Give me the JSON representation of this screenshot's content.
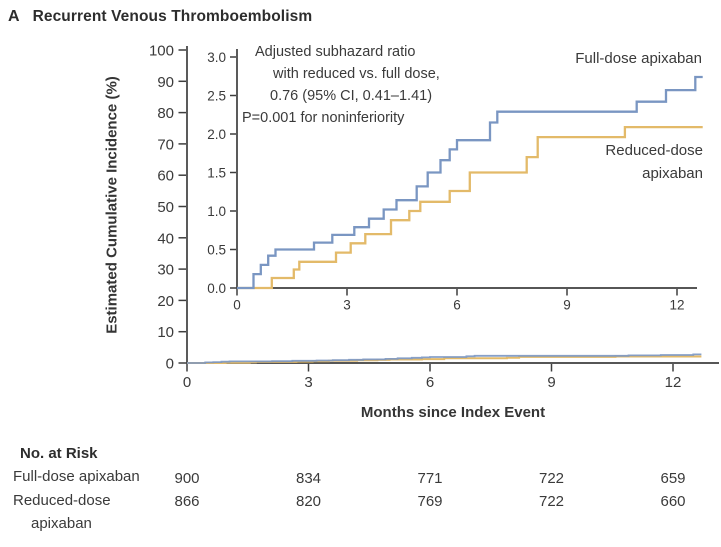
{
  "panel": {
    "label": "A",
    "title": "Recurrent Venous Thromboembolism"
  },
  "colors": {
    "full_dose": "#7a96c2",
    "reduced_dose": "#e3ba69",
    "axis": "#3e3e3e",
    "text": "#3a3a3a"
  },
  "chart_data": {
    "type": "line",
    "subtype": "step-function-cumulative-incidence",
    "title": "Recurrent Venous Thromboembolism",
    "xlabel": "Months since Index Event",
    "ylabel": "Estimated Cumulative Incidence (%)",
    "main_axis": {
      "xlim": [
        0,
        13.1
      ],
      "ylim": [
        0,
        100
      ],
      "xticks": [
        0,
        3,
        6,
        9,
        12
      ],
      "yticks": [
        0,
        10,
        20,
        30,
        40,
        50,
        60,
        70,
        80,
        90,
        100
      ],
      "grid": false
    },
    "inset_axis": {
      "xlim": [
        0,
        12.55
      ],
      "ylim": [
        0,
        3.0
      ],
      "xticks": [
        0,
        3,
        6,
        9,
        12
      ],
      "ytick_labels": [
        "0.0",
        "0.5",
        "1.0",
        "1.5",
        "2.0",
        "2.5",
        "3.0"
      ],
      "grid": false
    },
    "x_end": 12.7,
    "series": [
      {
        "name": "Full-dose apixaban",
        "color_key": "full_dose",
        "steps": [
          [
            0,
            0
          ],
          [
            0.45,
            0.18
          ],
          [
            0.65,
            0.3
          ],
          [
            0.85,
            0.42
          ],
          [
            1.05,
            0.5
          ],
          [
            2.1,
            0.59
          ],
          [
            2.6,
            0.69
          ],
          [
            3.2,
            0.79
          ],
          [
            3.6,
            0.9
          ],
          [
            4.0,
            1.02
          ],
          [
            4.35,
            1.14
          ],
          [
            4.9,
            1.32
          ],
          [
            5.2,
            1.5
          ],
          [
            5.55,
            1.66
          ],
          [
            5.8,
            1.8
          ],
          [
            6.0,
            1.92
          ],
          [
            6.9,
            2.15
          ],
          [
            7.1,
            2.29
          ],
          [
            10.9,
            2.42
          ],
          [
            11.7,
            2.57
          ],
          [
            12.5,
            2.74
          ]
        ]
      },
      {
        "name": "Reduced-dose apixaban",
        "color_key": "reduced_dose",
        "steps": [
          [
            0,
            0
          ],
          [
            0.95,
            0.13
          ],
          [
            1.55,
            0.24
          ],
          [
            1.7,
            0.34
          ],
          [
            2.7,
            0.46
          ],
          [
            3.1,
            0.58
          ],
          [
            3.5,
            0.7
          ],
          [
            4.2,
            0.88
          ],
          [
            4.7,
            1.0
          ],
          [
            5.0,
            1.12
          ],
          [
            5.8,
            1.26
          ],
          [
            6.35,
            1.5
          ],
          [
            7.9,
            1.7
          ],
          [
            8.2,
            1.96
          ],
          [
            10.58,
            2.09
          ]
        ]
      }
    ],
    "annotation": {
      "lines": [
        "Adjusted subhazard ratio",
        "with reduced vs. full dose,",
        "0.76 (95% CI, 0.41–1.41)",
        "P=0.001 for noninferiority"
      ]
    },
    "legend": {
      "full": "Full-dose apixaban",
      "reduced_line1": "Reduced-dose",
      "reduced_line2": "apixaban",
      "position": "inside-right"
    }
  },
  "at_risk": {
    "title": "No. at Risk",
    "months": [
      0,
      3,
      6,
      9,
      12
    ],
    "rows": [
      {
        "label": "Full-dose apixaban",
        "label_line2": "",
        "values": [
          "900",
          "834",
          "771",
          "722",
          "659"
        ]
      },
      {
        "label": "Reduced-dose",
        "label_line2": "apixaban",
        "values": [
          "866",
          "820",
          "769",
          "722",
          "660"
        ]
      }
    ]
  }
}
